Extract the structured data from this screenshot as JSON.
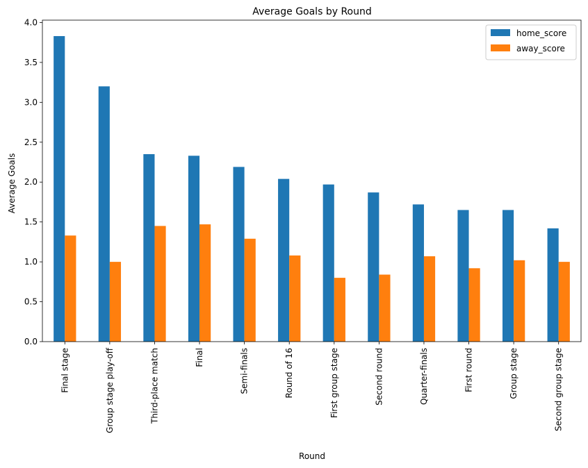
{
  "chart_data": {
    "type": "bar",
    "title": "Average Goals by Round",
    "xlabel": "Round",
    "ylabel": "Average Goals",
    "ylim": [
      0,
      4.03
    ],
    "yticks": [
      "0.0",
      "0.5",
      "1.0",
      "1.5",
      "2.0",
      "2.5",
      "3.0",
      "3.5",
      "4.0"
    ],
    "ytick_values": [
      0,
      0.5,
      1.0,
      1.5,
      2.0,
      2.5,
      3.0,
      3.5,
      4.0
    ],
    "categories": [
      "Final stage",
      "Group stage play-off",
      "Third-place match",
      "Final",
      "Semi-finals",
      "Round of 16",
      "First group stage",
      "Second round",
      "Quarter-finals",
      "First round",
      "Group stage",
      "Second group stage"
    ],
    "series": [
      {
        "name": "home_score",
        "color": "#1f77b4",
        "values": [
          3.83,
          3.2,
          2.35,
          2.33,
          2.19,
          2.04,
          1.97,
          1.87,
          1.72,
          1.65,
          1.65,
          1.42
        ]
      },
      {
        "name": "away_score",
        "color": "#ff7f0e",
        "values": [
          1.33,
          1.0,
          1.45,
          1.47,
          1.29,
          1.08,
          0.8,
          0.84,
          1.07,
          0.92,
          1.02,
          1.0
        ]
      }
    ],
    "grid": false,
    "legend": "top-right"
  }
}
